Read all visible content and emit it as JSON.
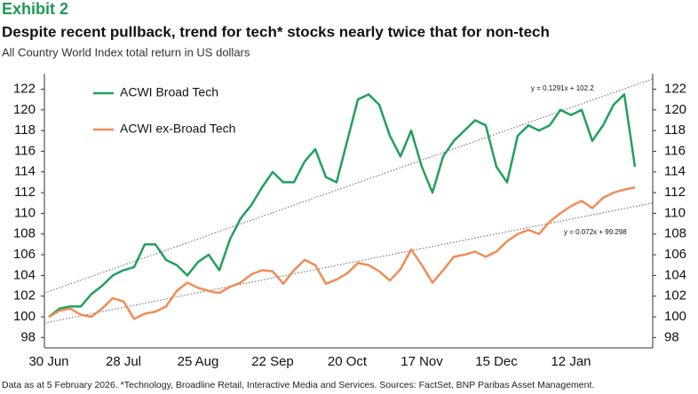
{
  "chart_data": {
    "type": "line",
    "exhibit": "Exhibit 2",
    "title": "Despite recent pullback, trend for tech* stocks nearly twice that for non-tech",
    "subtitle": "All Country World Index total return in US dollars",
    "note": "Data as at 5 February 2026. *Technology, Broadline Retail, Interactive Media and Services. Sources: FactSet, BNP Paribas Asset Management.",
    "categories": [
      "30 Jun",
      null,
      null,
      null,
      null,
      null,
      null,
      "28 Jul",
      null,
      null,
      null,
      null,
      null,
      null,
      "25 Aug",
      null,
      null,
      null,
      null,
      null,
      null,
      "22 Sep",
      null,
      null,
      null,
      null,
      null,
      null,
      "20 Oct",
      null,
      null,
      null,
      null,
      null,
      null,
      "17 Nov",
      null,
      null,
      null,
      null,
      null,
      null,
      "15 Dec",
      null,
      null,
      null,
      null,
      null,
      null,
      "12 Jan",
      null,
      null,
      null,
      null,
      null,
      null
    ],
    "ylim": [
      97,
      123.5
    ],
    "yticks": [
      98,
      100,
      102,
      104,
      106,
      108,
      110,
      112,
      114,
      116,
      118,
      120,
      122
    ],
    "y2lim": [
      97,
      123.5
    ],
    "y2ticks": [
      98,
      100,
      102,
      104,
      106,
      108,
      110,
      112,
      114,
      116,
      118,
      120,
      122
    ],
    "series": [
      {
        "name": "ACWI Broad Tech",
        "color": "#22a05a",
        "values": [
          100,
          100.8,
          101,
          101,
          102.2,
          103,
          104,
          104.5,
          104.8,
          107,
          107,
          105.5,
          105,
          104,
          105.3,
          106,
          104.5,
          107.5,
          109.5,
          110.8,
          112.5,
          114,
          113,
          113,
          115,
          116.2,
          113.5,
          113,
          117,
          121,
          121.5,
          120.5,
          117.5,
          115.5,
          118,
          114.5,
          112,
          115.5,
          117,
          118,
          119,
          118.5,
          114.5,
          113,
          117.5,
          118.5,
          118,
          118.5,
          120,
          119.5,
          120,
          117,
          118.5,
          120.5,
          121.5,
          114.5
        ],
        "trend": {
          "label": "y = 0.1291x + 102.2",
          "values": [
            102.3,
            123
          ]
        }
      },
      {
        "name": "ACWI ex-Broad Tech",
        "color": "#f08c57",
        "values": [
          100,
          100.6,
          100.8,
          100.2,
          100,
          100.8,
          101.8,
          101.5,
          99.8,
          100.3,
          100.5,
          101,
          102.5,
          103.3,
          102.8,
          102.5,
          102.3,
          102.9,
          103.3,
          104.1,
          104.5,
          104.4,
          103.2,
          104.5,
          105.5,
          105,
          103.2,
          103.6,
          104.2,
          105.2,
          105,
          104.4,
          103.5,
          104.6,
          106.5,
          105,
          103.3,
          104.5,
          105.8,
          106,
          106.3,
          105.8,
          106.3,
          107.3,
          108,
          108.4,
          108,
          109.2,
          110,
          110.7,
          111.2,
          110.5,
          111.5,
          112,
          112.3,
          112.5
        ],
        "trend": {
          "label": "y = 0.072x + 99.298",
          "values": [
            99.4,
            111
          ]
        }
      }
    ]
  }
}
